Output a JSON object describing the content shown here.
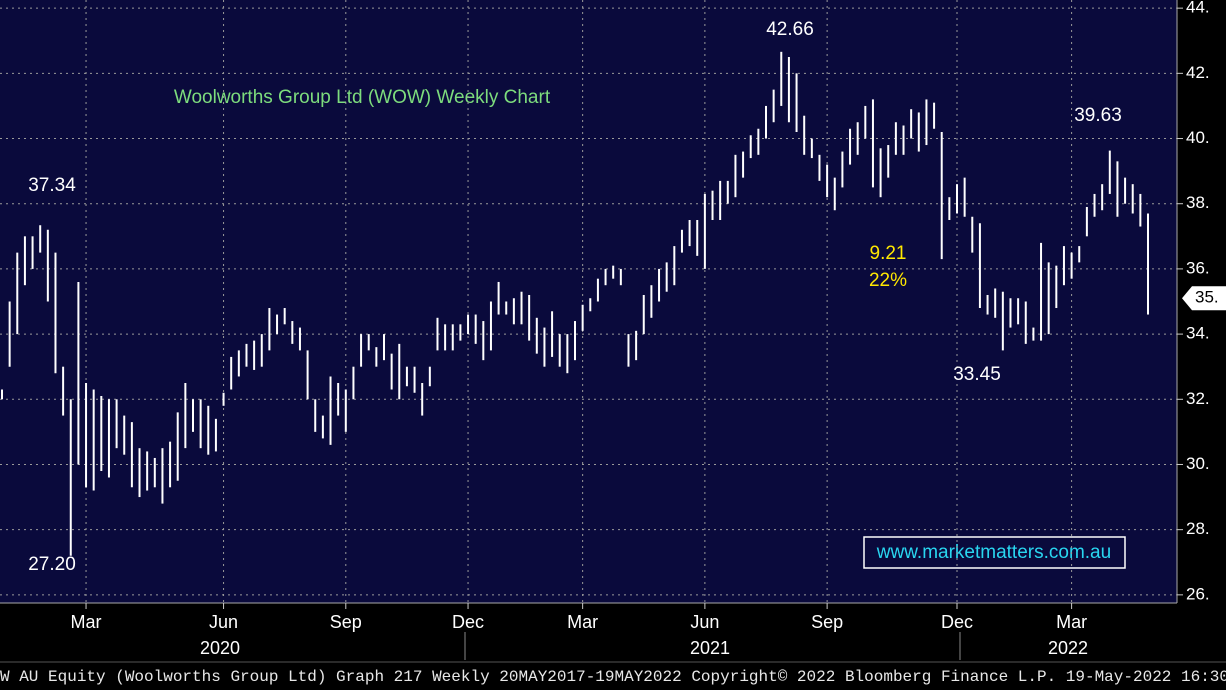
{
  "chart_data": {
    "type": "hlbar",
    "title": "Woolworths Group Ltd (WOW) Weekly Chart",
    "watermark": "www.marketmatters.com.au",
    "footer": "W AU Equity (Woolworths Group Ltd) Graph 217  Weekly 20MAY2017-19MAY2022   Copyright© 2022 Bloomberg Finance L.P.   19-May-2022 16:30",
    "color": "#ffffff",
    "grid": true,
    "ylim": [
      25.75,
      44.25
    ],
    "yticks": [
      {
        "value": 26,
        "label": "26."
      },
      {
        "value": 28,
        "label": "28."
      },
      {
        "value": 30,
        "label": "30."
      },
      {
        "value": 32,
        "label": "32."
      },
      {
        "value": 34,
        "label": "34."
      },
      {
        "value": 36,
        "label": "36."
      },
      {
        "value": 38,
        "label": "38."
      },
      {
        "value": 40,
        "label": "40."
      },
      {
        "value": 42,
        "label": "42."
      },
      {
        "value": 44,
        "label": "44."
      }
    ],
    "xlim": [
      0,
      150
    ],
    "xticks": [
      {
        "value": 11,
        "label": "Mar"
      },
      {
        "value": 29,
        "label": "Jun"
      },
      {
        "value": 45,
        "label": "Sep"
      },
      {
        "value": 61,
        "label": "Dec"
      },
      {
        "value": 76,
        "label": "Mar"
      },
      {
        "value": 92,
        "label": "Jun"
      },
      {
        "value": 108,
        "label": "Sep"
      },
      {
        "value": 125,
        "label": "Dec"
      },
      {
        "value": 140,
        "label": "Mar"
      }
    ],
    "years": [
      "2020",
      "2021",
      "2022"
    ],
    "last_price": {
      "value": 35.1,
      "label": "35."
    },
    "annotations": [
      "37.34",
      "27.20",
      "42.66",
      "9.21",
      "22%",
      "33.45",
      "39.63"
    ],
    "low": [
      32,
      33,
      34,
      35.5,
      36,
      36.5,
      35,
      32.8,
      31.5,
      27.2,
      30,
      29.3,
      29.2,
      29.8,
      29.6,
      30.5,
      30.3,
      29.3,
      29,
      29.2,
      29.3,
      28.8,
      29.3,
      29.5,
      30.5,
      31,
      30.5,
      30.3,
      30.4,
      31.8,
      32.3,
      32.7,
      33,
      32.9,
      33,
      33.5,
      34,
      34.3,
      33.7,
      33.5,
      32,
      31,
      30.8,
      30.6,
      31.5,
      31,
      32,
      33,
      33.5,
      33,
      33.2,
      32.3,
      32,
      32.4,
      32.2,
      31.5,
      32.4,
      33.5,
      33.5,
      33.5,
      33.8,
      34,
      33.7,
      33.2,
      33.5,
      34.6,
      34.6,
      34.3,
      34.3,
      33.8,
      33.4,
      33,
      33.3,
      33,
      32.8,
      33.2,
      34.1,
      34.7,
      35,
      35.5,
      35.7,
      35.5,
      33,
      33.2,
      34,
      34.5,
      35,
      35.3,
      35.5,
      36.5,
      36.7,
      36.4,
      36,
      37.5,
      37.5,
      38,
      38.2,
      38.8,
      39.4,
      39.5,
      40,
      40.5,
      41,
      40.5,
      40.2,
      39.5,
      39.4,
      38.7,
      38.2,
      37.8,
      38.5,
      39.2,
      39.5,
      40,
      38.5,
      38.2,
      38.8,
      39.5,
      39.5,
      40,
      39.6,
      39.8,
      40.3,
      36.3,
      37.5,
      37.7,
      37.6,
      36.5,
      34.8,
      34.6,
      34.5,
      33.5,
      34.2,
      34.3,
      33.7,
      33.8,
      33.8,
      34,
      34.8,
      35.5,
      35.7,
      36.2,
      37,
      37.6,
      37.8,
      38.3,
      37.6,
      38,
      37.7,
      37.3,
      34.6
    ],
    "high": [
      32.3,
      35,
      36.5,
      37,
      37,
      37.34,
      37.2,
      36.5,
      33,
      32,
      35.6,
      32.5,
      32.3,
      32.1,
      32,
      32,
      31.5,
      31.3,
      30.5,
      30.4,
      30.2,
      30.5,
      30.7,
      31.6,
      32.5,
      32,
      32,
      31.8,
      31.4,
      32.2,
      33.3,
      33.5,
      33.7,
      33.8,
      34,
      34.8,
      34.6,
      34.8,
      34.4,
      34.2,
      33.5,
      32,
      31.5,
      32.7,
      32.5,
      32.3,
      33,
      34,
      34,
      33.6,
      34,
      33.4,
      33.7,
      33,
      33,
      32.5,
      33,
      34.5,
      34.3,
      34.3,
      34.3,
      34.6,
      34.6,
      34.4,
      35,
      35.6,
      35,
      35.1,
      35.3,
      35.2,
      34.5,
      34.2,
      34.7,
      34,
      34,
      34.4,
      34.9,
      35.1,
      35.7,
      36,
      36.1,
      36,
      34,
      34.1,
      35.2,
      35.5,
      36,
      36.2,
      36.7,
      37.2,
      37.5,
      37.5,
      38.3,
      38.4,
      38.7,
      38.7,
      39.5,
      39.6,
      40.1,
      40.3,
      41,
      41.5,
      42.66,
      42.5,
      42,
      40.7,
      40,
      39.5,
      39.2,
      38.8,
      39.6,
      40.3,
      40.5,
      41,
      41.2,
      39.7,
      39.8,
      40.5,
      40.4,
      40.9,
      40.8,
      41.2,
      41.1,
      40.2,
      38.2,
      38.6,
      38.8,
      37.6,
      37.4,
      35.2,
      35.4,
      35.3,
      35.1,
      35.1,
      35,
      34.2,
      36.8,
      36.2,
      36.1,
      36.7,
      36.5,
      36.7,
      37.9,
      38.3,
      38.6,
      39.63,
      39.3,
      38.8,
      38.6,
      38.3,
      37.7
    ]
  }
}
